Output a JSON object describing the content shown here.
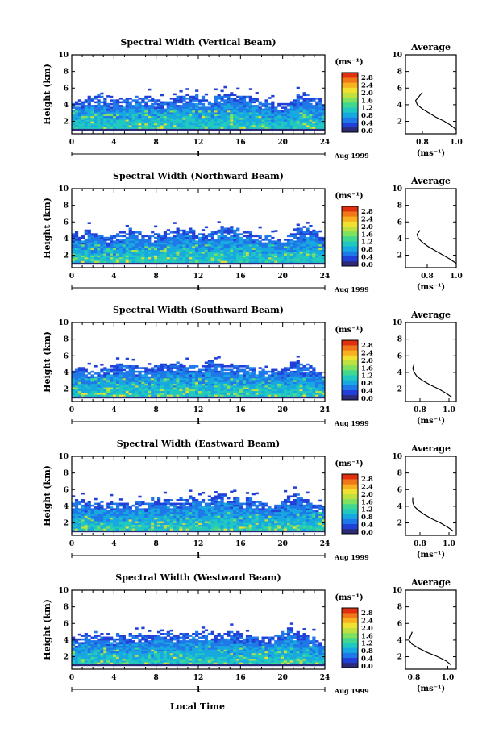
{
  "figure": {
    "xlabel": "Local Time",
    "date_label": "Aug 1999",
    "day_label": "1"
  },
  "colors": {
    "scale": [
      "#2b2b7a",
      "#2040d8",
      "#1e78e8",
      "#18a8e0",
      "#20c8c0",
      "#40d890",
      "#80e060",
      "#c0e040",
      "#f0e030",
      "#f8b020",
      "#f07818",
      "#e03010"
    ]
  },
  "chart_data": [
    {
      "type": "heatmap",
      "title": "Spectral Width (Vertical Beam)",
      "ylabel": "Height (km)",
      "xlim": [
        0,
        24
      ],
      "ylim": [
        0.5,
        10
      ],
      "xticks": [
        0,
        4,
        8,
        12,
        16,
        20,
        24
      ],
      "yticks": [
        2,
        4,
        6,
        8,
        10
      ],
      "colorbar": {
        "unit": "(ms⁻¹)",
        "ticks": [
          "2.8",
          "2.4",
          "2.0",
          "1.6",
          "1.2",
          "0.8",
          "0.4",
          "0.0"
        ],
        "range": [
          0,
          2.8
        ]
      },
      "profile": {
        "title": "Average",
        "xlabel": "(ms⁻¹)",
        "xlim": [
          0.7,
          1.0
        ],
        "xticks": [
          0.8,
          1.0
        ],
        "points": [
          [
            1.0,
            1.0
          ],
          [
            0.97,
            1.5
          ],
          [
            0.93,
            2.0
          ],
          [
            0.88,
            2.5
          ],
          [
            0.84,
            3.0
          ],
          [
            0.8,
            3.5
          ],
          [
            0.77,
            4.0
          ],
          [
            0.76,
            4.5
          ],
          [
            0.78,
            5.0
          ],
          [
            0.8,
            5.5
          ]
        ]
      },
      "cloud_top": [
        4.3,
        4.5,
        4.8,
        4.9,
        4.6,
        4.4,
        4.7,
        4.9,
        5.0,
        4.8,
        4.6,
        4.5,
        4.8,
        5.0,
        5.1,
        4.9,
        4.7,
        4.8,
        5.2,
        5.4,
        5.2,
        4.9,
        4.6,
        4.3,
        4.1,
        4.0,
        4.3,
        5.0,
        5.3,
        4.8,
        4.2
      ]
    },
    {
      "type": "heatmap",
      "title": "Spectral Width (Northward Beam)",
      "ylabel": "Height (km)",
      "xlim": [
        0,
        24
      ],
      "ylim": [
        0.5,
        10
      ],
      "xticks": [
        0,
        4,
        8,
        12,
        16,
        20,
        24
      ],
      "yticks": [
        2,
        4,
        6,
        8,
        10
      ],
      "colorbar": {
        "unit": "(ms⁻¹)",
        "ticks": [
          "2.8",
          "2.4",
          "2.0",
          "1.6",
          "1.2",
          "0.8",
          "0.4",
          "0.0"
        ],
        "range": [
          0,
          2.8
        ]
      },
      "profile": {
        "title": "Average",
        "xlabel": "(ms⁻¹)",
        "xlim": [
          0.65,
          1.0
        ],
        "xticks": [
          0.8,
          1.0
        ],
        "points": [
          [
            1.0,
            1.0
          ],
          [
            0.96,
            1.5
          ],
          [
            0.91,
            2.0
          ],
          [
            0.86,
            2.5
          ],
          [
            0.81,
            3.0
          ],
          [
            0.77,
            3.5
          ],
          [
            0.74,
            4.0
          ],
          [
            0.73,
            4.5
          ],
          [
            0.75,
            5.0
          ]
        ]
      },
      "cloud_top": [
        4.4,
        4.6,
        4.8,
        4.5,
        4.3,
        4.5,
        4.8,
        5.0,
        4.7,
        4.5,
        4.4,
        4.7,
        4.9,
        5.2,
        5.0,
        4.8,
        4.6,
        4.9,
        5.3,
        5.4,
        5.1,
        4.8,
        4.5,
        4.2,
        4.0,
        3.9,
        4.4,
        4.9,
        5.1,
        4.7,
        4.1
      ]
    },
    {
      "type": "heatmap",
      "title": "Spectral Width (Southward Beam)",
      "ylabel": "Height (km)",
      "xlim": [
        0,
        24
      ],
      "ylim": [
        0.5,
        10
      ],
      "xticks": [
        0,
        4,
        8,
        12,
        16,
        20,
        24
      ],
      "yticks": [
        2,
        4,
        6,
        8,
        10
      ],
      "colorbar": {
        "unit": "(ms⁻¹)",
        "ticks": [
          "2.8",
          "2.4",
          "2.0",
          "1.6",
          "1.2",
          "0.8",
          "0.4",
          "0.0"
        ],
        "range": [
          0,
          2.8
        ]
      },
      "profile": {
        "title": "Average",
        "xlabel": "(ms⁻¹)",
        "xlim": [
          0.7,
          1.05
        ],
        "xticks": [
          0.8,
          1.0
        ],
        "points": [
          [
            1.02,
            1.0
          ],
          [
            0.98,
            1.5
          ],
          [
            0.93,
            2.0
          ],
          [
            0.87,
            2.5
          ],
          [
            0.82,
            3.0
          ],
          [
            0.78,
            3.5
          ],
          [
            0.76,
            4.0
          ],
          [
            0.75,
            4.5
          ],
          [
            0.76,
            5.0
          ]
        ]
      },
      "cloud_top": [
        4.5,
        4.6,
        4.4,
        4.3,
        4.6,
        4.9,
        5.0,
        4.8,
        4.6,
        4.4,
        4.7,
        5.0,
        5.2,
        5.0,
        4.8,
        4.9,
        5.1,
        5.3,
        5.0,
        4.8,
        4.7,
        4.9,
        4.6,
        4.3,
        4.1,
        4.2,
        4.8,
        5.2,
        4.9,
        4.4,
        4.0
      ]
    },
    {
      "type": "heatmap",
      "title": "Spectral Width (Eastward Beam)",
      "ylabel": "Height (km)",
      "xlim": [
        0,
        24
      ],
      "ylim": [
        0.5,
        10
      ],
      "xticks": [
        0,
        4,
        8,
        12,
        16,
        20,
        24
      ],
      "yticks": [
        2,
        4,
        6,
        8,
        10
      ],
      "colorbar": {
        "unit": "(ms⁻¹)",
        "ticks": [
          "2.8",
          "2.4",
          "2.0",
          "1.6",
          "1.2",
          "0.8",
          "0.4",
          "0.0"
        ],
        "range": [
          0,
          2.8
        ]
      },
      "profile": {
        "title": "Average",
        "xlabel": "(ms⁻¹)",
        "xlim": [
          0.7,
          1.05
        ],
        "xticks": [
          0.8,
          1.0
        ],
        "points": [
          [
            1.03,
            1.0
          ],
          [
            0.99,
            1.5
          ],
          [
            0.94,
            2.0
          ],
          [
            0.88,
            2.5
          ],
          [
            0.83,
            3.0
          ],
          [
            0.79,
            3.5
          ],
          [
            0.76,
            4.0
          ],
          [
            0.75,
            4.5
          ],
          [
            0.75,
            5.0
          ]
        ]
      },
      "cloud_top": [
        4.5,
        4.7,
        4.4,
        4.2,
        4.3,
        4.6,
        4.4,
        4.2,
        4.5,
        4.7,
        4.9,
        4.7,
        4.5,
        4.8,
        5.1,
        5.0,
        4.8,
        5.2,
        5.4,
        5.0,
        4.7,
        4.8,
        4.6,
        4.3,
        4.1,
        4.4,
        5.1,
        5.3,
        4.8,
        4.3,
        3.9
      ]
    },
    {
      "type": "heatmap",
      "title": "Spectral Width (Westward Beam)",
      "ylabel": "Height (km)",
      "xlim": [
        0,
        24
      ],
      "ylim": [
        0.5,
        10
      ],
      "xticks": [
        0,
        4,
        8,
        12,
        16,
        20,
        24
      ],
      "yticks": [
        2,
        4,
        6,
        8,
        10
      ],
      "colorbar": {
        "unit": "(ms⁻¹)",
        "ticks": [
          "2.8",
          "2.4",
          "2.0",
          "1.6",
          "1.2",
          "0.8",
          "0.4",
          "0.0"
        ],
        "range": [
          0,
          2.8
        ]
      },
      "profile": {
        "title": "Average",
        "xlabel": "(ms⁻¹)",
        "xlim": [
          0.75,
          1.05
        ],
        "xticks": [
          0.8,
          1.0
        ],
        "points": [
          [
            1.02,
            1.0
          ],
          [
            0.99,
            1.5
          ],
          [
            0.94,
            2.0
          ],
          [
            0.88,
            2.5
          ],
          [
            0.83,
            3.0
          ],
          [
            0.79,
            3.5
          ],
          [
            0.77,
            4.0
          ],
          [
            0.78,
            4.5
          ],
          [
            0.79,
            5.0
          ]
        ]
      },
      "cloud_top": [
        4.3,
        4.4,
        4.6,
        4.8,
        4.6,
        4.4,
        4.6,
        4.8,
        4.7,
        4.5,
        4.7,
        5.0,
        4.8,
        4.6,
        4.9,
        5.1,
        4.9,
        4.7,
        4.8,
        5.0,
        4.8,
        4.6,
        4.4,
        4.2,
        4.3,
        4.9,
        5.2,
        4.8,
        4.4,
        4.1,
        4.0
      ]
    }
  ]
}
